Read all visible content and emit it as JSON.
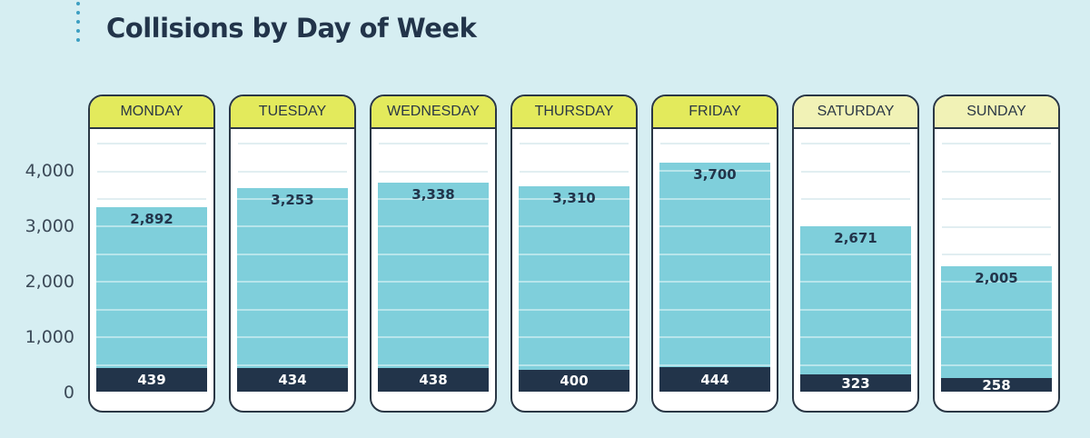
{
  "chart_data": {
    "type": "bar",
    "stacked": true,
    "title": "Collisions by Day of Week",
    "categories": [
      "MONDAY",
      "TUESDAY",
      "WEDNESDAY",
      "THURSDAY",
      "FRIDAY",
      "SATURDAY",
      "SUNDAY"
    ],
    "series": [
      {
        "values": [
          439,
          434,
          438,
          400,
          444,
          323,
          258
        ],
        "color": "#22344a"
      },
      {
        "values": [
          2892,
          3253,
          3338,
          3310,
          3700,
          2671,
          2005
        ],
        "color": "#7fcfdb"
      }
    ],
    "yticks": [
      "0",
      "1,000",
      "2,000",
      "3,000",
      "4,000"
    ],
    "ylim": [
      0,
      4600
    ],
    "header_colors": [
      "#e3ea5c",
      "#e3ea5c",
      "#e3ea5c",
      "#e3ea5c",
      "#e3ea5c",
      "#f1f2b6",
      "#f1f2b6"
    ],
    "grid": true,
    "legend": "none"
  }
}
